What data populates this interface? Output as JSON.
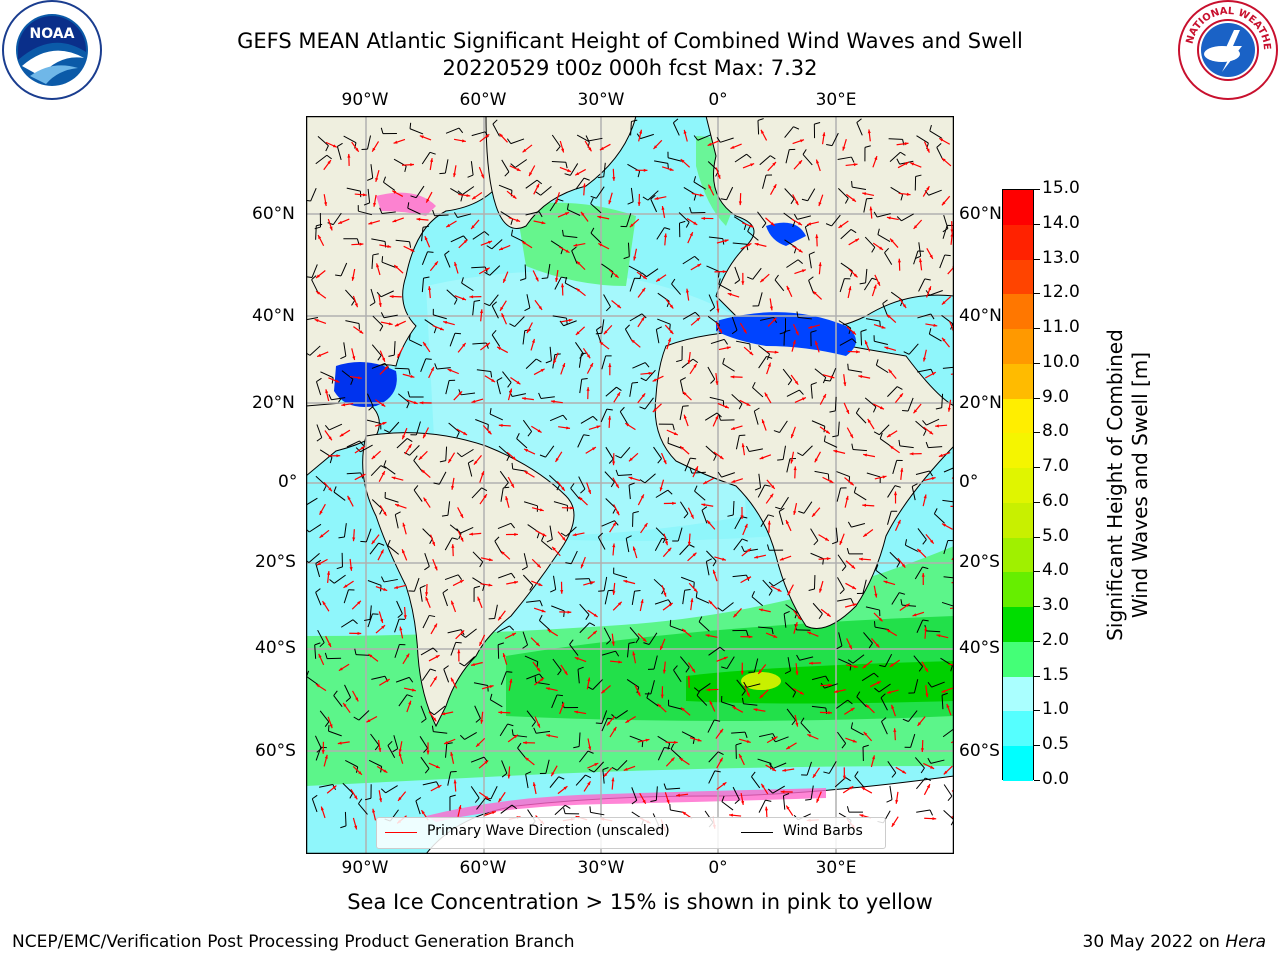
{
  "header": {
    "title_line1": "GEFS MEAN Atlantic Significant Height of Combined Wind Waves and Swell",
    "title_line2": "20220529 t00z 000h fcst   Max: 7.32"
  },
  "logos": {
    "noaa": "noaa-logo",
    "nws": "national-weather-service-logo"
  },
  "map": {
    "top_lon_labels": [
      "90°W",
      "60°W",
      "30°W",
      "0°",
      "30°E"
    ],
    "bottom_lon_labels": [
      "90°W",
      "60°W",
      "30°W",
      "0°",
      "30°E"
    ],
    "left_lat_labels": [
      "60°N",
      "40°N",
      "20°N",
      "0°",
      "20°S",
      "40°S",
      "60°S"
    ],
    "right_lat_labels": [
      "60°N",
      "40°N",
      "20°N",
      "0°",
      "20°S",
      "40°S",
      "60°S"
    ],
    "land_color": "#efefdf",
    "ice_color": "#ffffff",
    "legend": {
      "wave_label": "Primary Wave Direction (unscaled)",
      "barb_label": "Wind Barbs",
      "wave_color": "#ff0000",
      "barb_color": "#000000"
    }
  },
  "colorbar": {
    "label_line1": "Significant Height of Combined",
    "label_line2": "Wind Waves and Swell [m]",
    "ticks": [
      "15.0",
      "14.0",
      "13.0",
      "12.0",
      "11.0",
      "10.0",
      "9.0",
      "8.0",
      "7.0",
      "6.0",
      "5.0",
      "4.0",
      "3.0",
      "2.0",
      "1.5",
      "1.0",
      "0.5",
      "0.0"
    ],
    "colors_top_to_bottom": [
      "#ff0000",
      "#ff2200",
      "#ff4400",
      "#ff7700",
      "#ff9900",
      "#ffbb00",
      "#ffee00",
      "#f5f500",
      "#e0f500",
      "#c8f000",
      "#a0f000",
      "#66ee00",
      "#00dd00",
      "#44ff77",
      "#aaffff",
      "#55ffff",
      "#00ffff",
      "#0077ff",
      "#0000ff"
    ]
  },
  "notes": {
    "ice": "Sea Ice Concentration > 15% is shown in pink to yellow"
  },
  "footer": {
    "left": "NCEP/EMC/Verification Post Processing Product Generation Branch",
    "right_date": "30 May 2022 on ",
    "right_host": "Hera"
  }
}
